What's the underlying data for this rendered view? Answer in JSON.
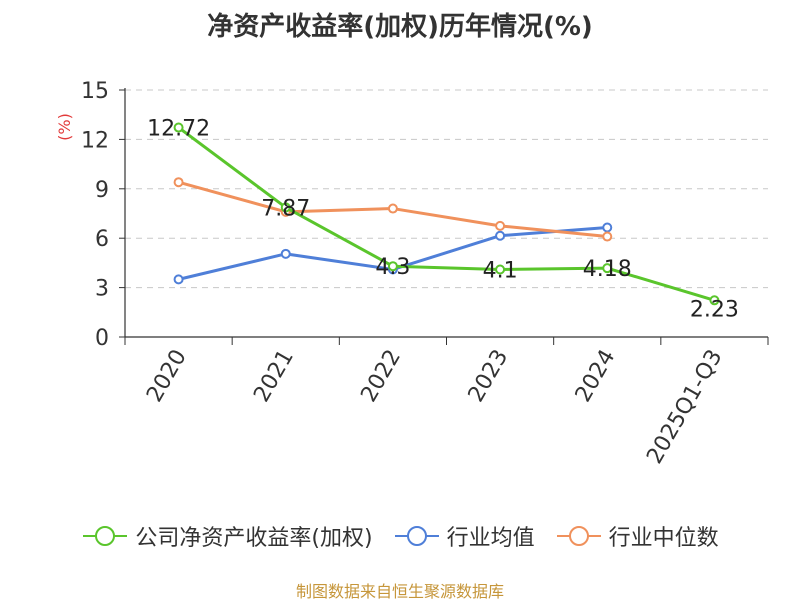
{
  "chart_data": {
    "type": "line",
    "title": "净资产收益率(加权)历年情况(%)",
    "ylabel": "(%)",
    "xlabel": "",
    "categories": [
      "2020",
      "2021",
      "2022",
      "2023",
      "2024",
      "2025Q1-Q3"
    ],
    "ylim": [
      0,
      15
    ],
    "yticks": [
      0,
      3,
      6,
      9,
      12,
      15
    ],
    "grid": true,
    "legend_position": "bottom",
    "series": [
      {
        "name": "公司净资产收益率(加权)",
        "color": "#5ac52c",
        "values": [
          12.72,
          7.87,
          4.3,
          4.1,
          4.18,
          2.23
        ],
        "labels": [
          "12.72",
          "7.87",
          "4.3",
          "4.1",
          "4.18",
          "2.23"
        ]
      },
      {
        "name": "行业均值",
        "color": "#4f7fd8",
        "values": [
          3.5,
          5.05,
          4.1,
          6.15,
          6.65,
          null
        ]
      },
      {
        "name": "行业中位数",
        "color": "#f0915c",
        "values": [
          9.4,
          7.6,
          7.8,
          6.75,
          6.1,
          null
        ]
      }
    ]
  },
  "source": "制图数据来自恒生聚源数据库"
}
